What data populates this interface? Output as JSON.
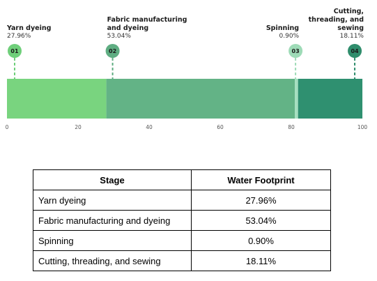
{
  "chart_data": {
    "type": "bar",
    "stacked": true,
    "orientation": "horizontal",
    "xlim": [
      0,
      100
    ],
    "ticks": [
      "0",
      "20",
      "40",
      "60",
      "80",
      "100"
    ],
    "tick_values": [
      0,
      20,
      40,
      60,
      80,
      100
    ],
    "segments": [
      {
        "number": "01",
        "name_lines": [
          "Yarn dyeing"
        ],
        "percent_label": "27.96%",
        "value": 27.96,
        "color": "#79d47f",
        "marker_color": "#6fcf7a",
        "label_align": "left"
      },
      {
        "number": "02",
        "name_lines": [
          "Fabric manufacturing",
          "and dyeing"
        ],
        "percent_label": "53.04%",
        "value": 53.04,
        "color": "#63b386",
        "marker_color": "#5fad82",
        "label_align": "left"
      },
      {
        "number": "03",
        "name_lines": [
          "Spinning"
        ],
        "percent_label": "0.90%",
        "value": 0.9,
        "color": "#a5dfbf",
        "marker_color": "#9edbb7",
        "label_align": "right"
      },
      {
        "number": "04",
        "name_lines": [
          "Cutting,",
          "threading, and",
          "sewing"
        ],
        "percent_label": "18.11%",
        "value": 18.11,
        "color": "#2f9070",
        "marker_color": "#2f8d6c",
        "label_align": "right"
      }
    ]
  },
  "table": {
    "headers": [
      "Stage",
      "Water Footprint"
    ],
    "rows": [
      {
        "stage": "Yarn dyeing",
        "value": "27.96%"
      },
      {
        "stage": "Fabric manufacturing and dyeing",
        "value": "53.04%"
      },
      {
        "stage": "Spinning",
        "value": "0.90%"
      },
      {
        "stage": "Cutting, threading, and sewing",
        "value": "18.11%"
      }
    ]
  }
}
